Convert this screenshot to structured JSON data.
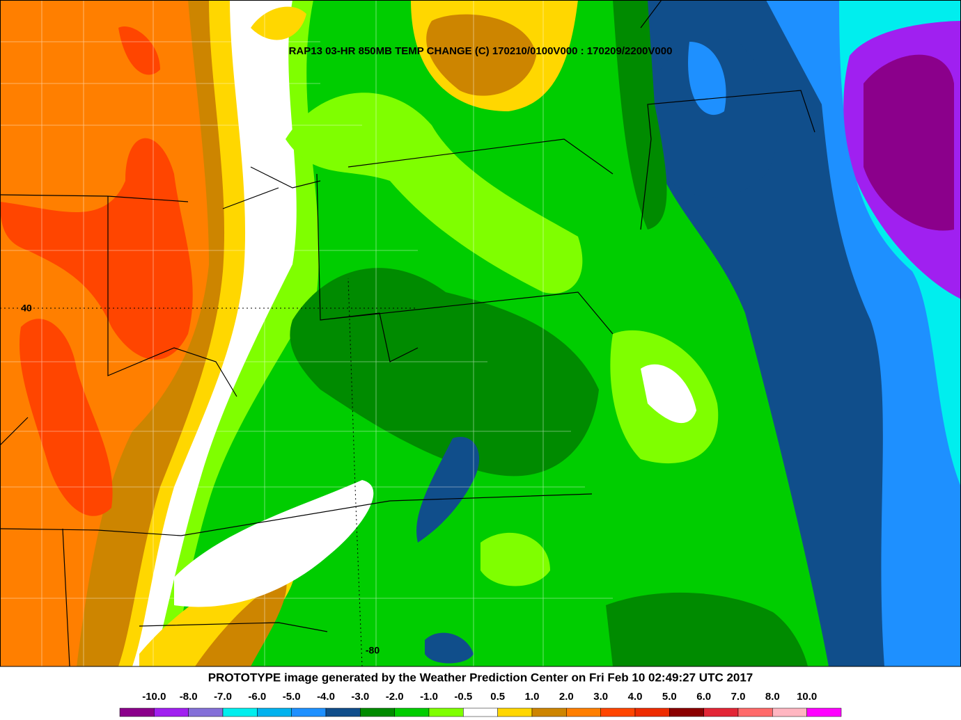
{
  "map": {
    "title": "RAP13 03-HR 850MB TEMP CHANGE (C) 170210/0100V000 : 170209/2200V000",
    "labels": [
      "40",
      "-80"
    ]
  },
  "footer": {
    "credit": "PROTOTYPE image generated by the Weather Prediction Center on Fri Feb 10 02:49:27 UTC 2017",
    "colorbar": {
      "labels": [
        "-10.0",
        "-8.0",
        "-7.0",
        "-6.0",
        "-5.0",
        "-4.0",
        "-3.0",
        "-2.0",
        "-1.0",
        "-0.5",
        "0.5",
        "1.0",
        "2.0",
        "3.0",
        "4.0",
        "5.0",
        "6.0",
        "7.0",
        "8.0",
        "10.0"
      ],
      "colors": [
        "#8b008b",
        "#a020f0",
        "#8470d8",
        "#00eeee",
        "#00b2ee",
        "#1e90ff",
        "#104e8b",
        "#008b00",
        "#00cd00",
        "#7fff00",
        "#ffffff",
        "#ffd700",
        "#cd8500",
        "#ff7f00",
        "#ff4500",
        "#ee2c00",
        "#8b0000",
        "#e32636",
        "#ff6a6a",
        "#ffb6c1",
        "#ff00ff"
      ]
    }
  }
}
